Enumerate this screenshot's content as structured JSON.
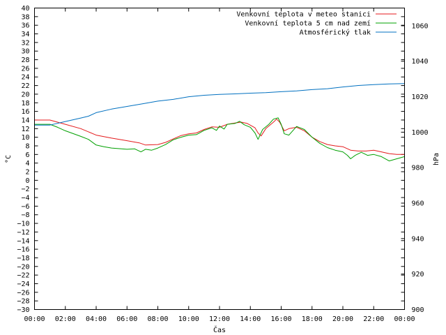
{
  "chart_data": {
    "type": "line",
    "xlabel": "Čas",
    "ylabel_left": "°C",
    "ylabel_right": "hPa",
    "x_ticks": [
      "00:00",
      "02:00",
      "04:00",
      "06:00",
      "08:00",
      "10:00",
      "12:00",
      "14:00",
      "16:00",
      "18:00",
      "20:00",
      "22:00",
      "00:00"
    ],
    "xlim_hours": [
      0,
      24
    ],
    "ylim_left": [
      -30,
      40
    ],
    "y_ticks_left": [
      -30,
      -28,
      -26,
      -24,
      -22,
      -20,
      -18,
      -16,
      -14,
      -12,
      -10,
      -8,
      -6,
      -4,
      -2,
      0,
      2,
      4,
      6,
      8,
      10,
      12,
      14,
      16,
      18,
      20,
      22,
      24,
      26,
      28,
      30,
      32,
      34,
      36,
      38,
      40
    ],
    "ylim_right": [
      900,
      1070
    ],
    "y_ticks_right": [
      900,
      920,
      940,
      960,
      980,
      1000,
      1020,
      1040,
      1060
    ],
    "grid": false,
    "legend_position": "top-right",
    "series": [
      {
        "name": "Venkovní teplota v meteo stanici",
        "axis": "left",
        "color": "#e41a1c",
        "points": [
          [
            0,
            14
          ],
          [
            1,
            14
          ],
          [
            2,
            13
          ],
          [
            3,
            12
          ],
          [
            4,
            10.5
          ],
          [
            5,
            9.8
          ],
          [
            6,
            9.2
          ],
          [
            6.8,
            8.7
          ],
          [
            7.2,
            8.2
          ],
          [
            8,
            8.3
          ],
          [
            8.5,
            8.8
          ],
          [
            9,
            9.6
          ],
          [
            9.5,
            10.4
          ],
          [
            10,
            10.8
          ],
          [
            10.5,
            11
          ],
          [
            11,
            11.8
          ],
          [
            11.5,
            12.4
          ],
          [
            12,
            12.3
          ],
          [
            12.5,
            13
          ],
          [
            13,
            13.3
          ],
          [
            13.4,
            13.5
          ],
          [
            13.8,
            13.2
          ],
          [
            14.3,
            12.2
          ],
          [
            14.5,
            11
          ],
          [
            14.7,
            10.3
          ],
          [
            15,
            12
          ],
          [
            15.5,
            13.5
          ],
          [
            15.7,
            14.2
          ],
          [
            15.9,
            13.5
          ],
          [
            16.2,
            11.5
          ],
          [
            16.5,
            12
          ],
          [
            17,
            12.3
          ],
          [
            17.5,
            11.5
          ],
          [
            18,
            10
          ],
          [
            18.5,
            9
          ],
          [
            19,
            8.3
          ],
          [
            19.5,
            8
          ],
          [
            20,
            7.8
          ],
          [
            20.5,
            7
          ],
          [
            21,
            6.8
          ],
          [
            21.5,
            6.8
          ],
          [
            22,
            7
          ],
          [
            22.5,
            6.6
          ],
          [
            23,
            6.2
          ],
          [
            23.5,
            6
          ],
          [
            24,
            6
          ]
        ]
      },
      {
        "name": "Venkovní teplota 5 cm nad zemí",
        "axis": "left",
        "color": "#00a000",
        "points": [
          [
            0,
            13
          ],
          [
            1,
            13
          ],
          [
            1.5,
            12.3
          ],
          [
            2,
            11.5
          ],
          [
            3,
            10.2
          ],
          [
            3.5,
            9.5
          ],
          [
            4,
            8.2
          ],
          [
            4.5,
            7.8
          ],
          [
            5,
            7.5
          ],
          [
            6,
            7.2
          ],
          [
            6.5,
            7.3
          ],
          [
            6.9,
            6.6
          ],
          [
            7.2,
            7.2
          ],
          [
            7.6,
            7
          ],
          [
            8,
            7.5
          ],
          [
            8.5,
            8.3
          ],
          [
            9,
            9.4
          ],
          [
            9.5,
            10
          ],
          [
            10,
            10.5
          ],
          [
            10.5,
            10.6
          ],
          [
            11,
            11.6
          ],
          [
            11.5,
            12.2
          ],
          [
            11.8,
            11.6
          ],
          [
            12,
            12.6
          ],
          [
            12.3,
            11.9
          ],
          [
            12.5,
            13
          ],
          [
            13,
            13.2
          ],
          [
            13.3,
            13.7
          ],
          [
            13.6,
            12.9
          ],
          [
            14,
            12.3
          ],
          [
            14.3,
            11
          ],
          [
            14.5,
            9.5
          ],
          [
            14.8,
            11.8
          ],
          [
            15.2,
            13
          ],
          [
            15.5,
            14.2
          ],
          [
            15.8,
            14.5
          ],
          [
            16,
            13
          ],
          [
            16.2,
            10.8
          ],
          [
            16.5,
            10.5
          ],
          [
            17,
            12.5
          ],
          [
            17.5,
            11.8
          ],
          [
            18,
            10
          ],
          [
            18.5,
            8.6
          ],
          [
            19,
            7.6
          ],
          [
            19.5,
            7
          ],
          [
            20,
            6.6
          ],
          [
            20.3,
            5.8
          ],
          [
            20.5,
            5
          ],
          [
            20.8,
            5.8
          ],
          [
            21.2,
            6.5
          ],
          [
            21.6,
            5.8
          ],
          [
            22,
            6
          ],
          [
            22.5,
            5.5
          ],
          [
            23,
            4.5
          ],
          [
            23.5,
            5
          ],
          [
            24,
            5.5
          ]
        ]
      },
      {
        "name": "Atmosférický tlak",
        "axis": "right",
        "color": "#0070c0",
        "points": [
          [
            0,
            1004
          ],
          [
            1,
            1004
          ],
          [
            2,
            1006
          ],
          [
            3,
            1008
          ],
          [
            3.5,
            1009
          ],
          [
            4,
            1011
          ],
          [
            5,
            1013
          ],
          [
            6,
            1014.5
          ],
          [
            7,
            1016
          ],
          [
            8,
            1017.5
          ],
          [
            9,
            1018.5
          ],
          [
            10,
            1020
          ],
          [
            11,
            1020.8
          ],
          [
            12,
            1021.3
          ],
          [
            13,
            1021.6
          ],
          [
            14,
            1022
          ],
          [
            15,
            1022.3
          ],
          [
            16,
            1022.8
          ],
          [
            17,
            1023.3
          ],
          [
            18,
            1024
          ],
          [
            19,
            1024.5
          ],
          [
            20,
            1025.5
          ],
          [
            21,
            1026.3
          ],
          [
            22,
            1026.8
          ],
          [
            23,
            1027.2
          ],
          [
            24,
            1027.4
          ]
        ]
      }
    ]
  }
}
